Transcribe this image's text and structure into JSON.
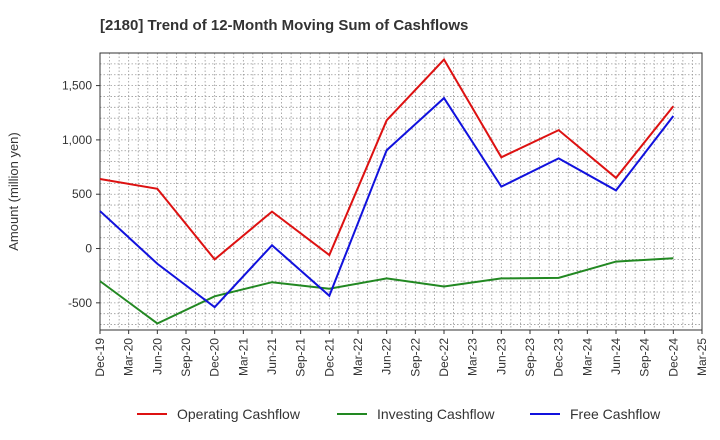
{
  "chart_data": {
    "type": "line",
    "title": "[2180]  Trend of 12-Month Moving Sum of Cashflows",
    "xlabel": "",
    "ylabel": "Amount (million yen)",
    "ylim": [
      -750,
      1800
    ],
    "yticks": [
      -500,
      0,
      500,
      1000,
      1500
    ],
    "ytick_labels": [
      "-500",
      "0",
      "500",
      "1,000",
      "1,500"
    ],
    "x_tick_labels": [
      "Dec-19",
      "Mar-20",
      "Jun-20",
      "Sep-20",
      "Dec-20",
      "Mar-21",
      "Jun-21",
      "Sep-21",
      "Dec-21",
      "Mar-22",
      "Jun-22",
      "Sep-22",
      "Dec-22",
      "Mar-23",
      "Jun-23",
      "Sep-23",
      "Dec-23",
      "Mar-24",
      "Jun-24",
      "Sep-24",
      "Dec-24",
      "Mar-25"
    ],
    "x": [
      "Dec-19",
      "Jun-20",
      "Dec-20",
      "Jun-21",
      "Dec-21",
      "Jun-22",
      "Dec-22",
      "Jun-23",
      "Dec-23",
      "Jun-24",
      "Dec-24"
    ],
    "grid": true,
    "legend_position": "bottom",
    "series": [
      {
        "name": "Operating Cashflow",
        "color": "#dd1111",
        "values": [
          640,
          550,
          -100,
          340,
          -60,
          1180,
          1740,
          840,
          1090,
          650,
          1310
        ]
      },
      {
        "name": "Investing Cashflow",
        "color": "#228822",
        "values": [
          -300,
          -690,
          -440,
          -310,
          -370,
          -275,
          -350,
          -275,
          -270,
          -120,
          -90
        ]
      },
      {
        "name": "Free Cashflow",
        "color": "#1111dd",
        "values": [
          345,
          -140,
          -540,
          30,
          -435,
          905,
          1385,
          570,
          830,
          535,
          1220
        ]
      }
    ]
  }
}
